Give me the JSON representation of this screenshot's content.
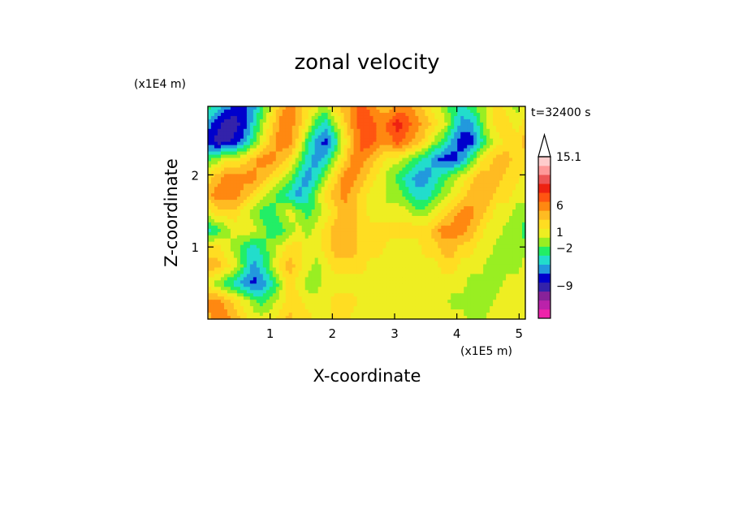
{
  "chart_data": {
    "type": "heatmap",
    "title": "zonal velocity",
    "xlabel": "X-coordinate",
    "ylabel": "Z-coordinate",
    "x_unit": "(x1E5 m)",
    "y_unit": "(x1E4 m)",
    "time_label": "t=32400 s",
    "xlim": [
      0,
      5.1
    ],
    "ylim": [
      0,
      2.95
    ],
    "x_ticks": [
      1,
      2,
      3,
      4,
      5
    ],
    "y_ticks": [
      1,
      2
    ],
    "grid": false,
    "legend": "colorbar-right",
    "colorbar": {
      "levels": [
        {
          "color": "#ee22aa"
        },
        {
          "color": "#bb22aa"
        },
        {
          "color": "#882299"
        },
        {
          "color": "#3322aa"
        },
        {
          "color": "#0000cc"
        },
        {
          "color": "#2299dd"
        },
        {
          "color": "#22ddcc"
        },
        {
          "color": "#22ee66"
        },
        {
          "color": "#99ee22"
        },
        {
          "color": "#eeee22"
        },
        {
          "color": "#ffdd22"
        },
        {
          "color": "#ffbb22"
        },
        {
          "color": "#ff8811"
        },
        {
          "color": "#ff5511"
        },
        {
          "color": "#ee2211"
        },
        {
          "color": "#ee5555"
        },
        {
          "color": "#ff9999"
        },
        {
          "color": "#ffcccc"
        }
      ],
      "labels": [
        {
          "text": "15.1",
          "value": 15.1
        },
        {
          "text": "6",
          "value": 6
        },
        {
          "text": "1",
          "value": 1
        },
        {
          "text": "−2",
          "value": -2
        },
        {
          "text": "−9",
          "value": -9
        }
      ]
    },
    "field": {
      "note_rows_top_to_bottom": true,
      "grid": [
        [
          7,
          6,
          5,
          4,
          4,
          5,
          7,
          9,
          11,
          12,
          11,
          10,
          9,
          8,
          10,
          11,
          12,
          13,
          12,
          11,
          11,
          12,
          12,
          11,
          10,
          9,
          8,
          7,
          6,
          7,
          8,
          9,
          10,
          9,
          8,
          9
        ],
        [
          5,
          4,
          3,
          3,
          4,
          6,
          8,
          10,
          12,
          12,
          11,
          9,
          7,
          6,
          8,
          10,
          12,
          13,
          13,
          12,
          13,
          14,
          13,
          12,
          11,
          10,
          9,
          7,
          5,
          5,
          7,
          9,
          10,
          10,
          9,
          10
        ],
        [
          4,
          3,
          3,
          4,
          5,
          7,
          9,
          11,
          12,
          12,
          10,
          7,
          5,
          4,
          6,
          9,
          11,
          13,
          13,
          12,
          12,
          13,
          12,
          11,
          10,
          8,
          7,
          5,
          4,
          4,
          6,
          8,
          9,
          10,
          10,
          11
        ],
        [
          7,
          8,
          9,
          9,
          10,
          11,
          12,
          12,
          11,
          10,
          8,
          6,
          5,
          6,
          8,
          10,
          12,
          12,
          11,
          10,
          9,
          9,
          8,
          7,
          6,
          5,
          4,
          4,
          5,
          7,
          9,
          10,
          11,
          11,
          10,
          10
        ],
        [
          10,
          11,
          12,
          12,
          12,
          12,
          11,
          10,
          9,
          8,
          6,
          5,
          6,
          8,
          10,
          12,
          12,
          11,
          10,
          9,
          8,
          7,
          6,
          5,
          5,
          6,
          7,
          8,
          9,
          10,
          11,
          11,
          11,
          10,
          10,
          9
        ],
        [
          11,
          12,
          12,
          12,
          11,
          10,
          9,
          8,
          7,
          6,
          5,
          6,
          8,
          10,
          11,
          12,
          11,
          10,
          9,
          9,
          8,
          8,
          7,
          6,
          6,
          7,
          8,
          9,
          10,
          11,
          11,
          11,
          10,
          10,
          9,
          9
        ],
        [
          9,
          10,
          10,
          10,
          9,
          8,
          7,
          7,
          8,
          9,
          8,
          7,
          8,
          9,
          10,
          11,
          11,
          10,
          9,
          9,
          9,
          9,
          9,
          8,
          8,
          9,
          10,
          11,
          12,
          12,
          11,
          10,
          9,
          9,
          8,
          8
        ],
        [
          6,
          7,
          8,
          9,
          9,
          9,
          8,
          7,
          7,
          8,
          9,
          8,
          9,
          10,
          11,
          11,
          11,
          10,
          10,
          10,
          10,
          10,
          10,
          10,
          10,
          11,
          12,
          12,
          12,
          11,
          10,
          9,
          9,
          8,
          8,
          7
        ],
        [
          10,
          10,
          9,
          8,
          7,
          6,
          7,
          8,
          9,
          10,
          10,
          9,
          9,
          10,
          11,
          11,
          11,
          10,
          10,
          10,
          9,
          9,
          9,
          9,
          10,
          10,
          11,
          11,
          10,
          10,
          9,
          9,
          8,
          8,
          8,
          8
        ],
        [
          11,
          11,
          10,
          9,
          7,
          5,
          6,
          8,
          10,
          11,
          10,
          9,
          8,
          9,
          10,
          10,
          10,
          10,
          9,
          9,
          9,
          9,
          9,
          9,
          9,
          9,
          10,
          10,
          9,
          9,
          9,
          8,
          8,
          8,
          8,
          9
        ],
        [
          9,
          8,
          7,
          6,
          5,
          4,
          5,
          6,
          8,
          10,
          9,
          8,
          8,
          9,
          9,
          9,
          9,
          9,
          9,
          9,
          9,
          9,
          9,
          9,
          9,
          9,
          9,
          9,
          9,
          8,
          8,
          8,
          8,
          9,
          9,
          9
        ],
        [
          12,
          12,
          11,
          10,
          9,
          8,
          7,
          8,
          9,
          10,
          10,
          9,
          9,
          9,
          10,
          10,
          10,
          9,
          9,
          9,
          9,
          9,
          9,
          9,
          9,
          9,
          9,
          8,
          8,
          8,
          8,
          8,
          9,
          9,
          9,
          9
        ],
        [
          11,
          12,
          12,
          11,
          10,
          9,
          9,
          9,
          10,
          11,
          10,
          10,
          9,
          9,
          10,
          10,
          9,
          9,
          9,
          9,
          9,
          9,
          9,
          9,
          9,
          9,
          9,
          9,
          9,
          8,
          8,
          9,
          9,
          9,
          9,
          9
        ]
      ]
    }
  }
}
